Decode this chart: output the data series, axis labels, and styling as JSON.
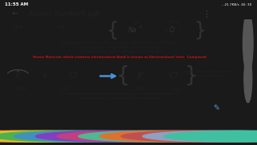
{
  "bg_color": "#1a1a1a",
  "screen_bg": "#e8e0d8",
  "status_bar_bg": "#2a2a2a",
  "status_time": "11:55 AM",
  "status_right": "...21.7KB/s  40: 30",
  "title_bar_bg": "#f0ece6",
  "title_text": "Atomic Number5.pdf",
  "red_line": "Hence Molecule which contains electrovalent Bond is known as Electrovalent/ Ionic  Compound",
  "line1": "Electrovalent Bond Ionic Bond formation due to transfer of electrons",
  "line2": "Sodium attains  nearest [Ne]  gas configuration",
  "line3": "Chlorine attains nearest [Ar] gas Configuration",
  "k_label": "K",
  "cl_label": "Cl",
  "arrow_color": "#4a90d9",
  "held_text1": "Held together by Electrostatic",
  "held_text2": "Force of attraction",
  "bottom_line1": "Electrovalent Bond Ionic Bond formation due to transfer of electron,",
  "bottom_line2": "Potassium attains  nearest [Ar]  gas configuration",
  "nav_bar_bg": "#1a1a1a",
  "taskbar_icons": [
    "#e05050",
    "#f0a830",
    "#d4c820",
    "#50b050",
    "#4090c0",
    "#8040c0",
    "#c04080",
    "#50b890",
    "#e07030",
    "#c05050",
    "#90a0c0",
    "#40c0a0"
  ],
  "content_bg": "#ddd5c8",
  "dark_side_bg": "#2a2a2a"
}
